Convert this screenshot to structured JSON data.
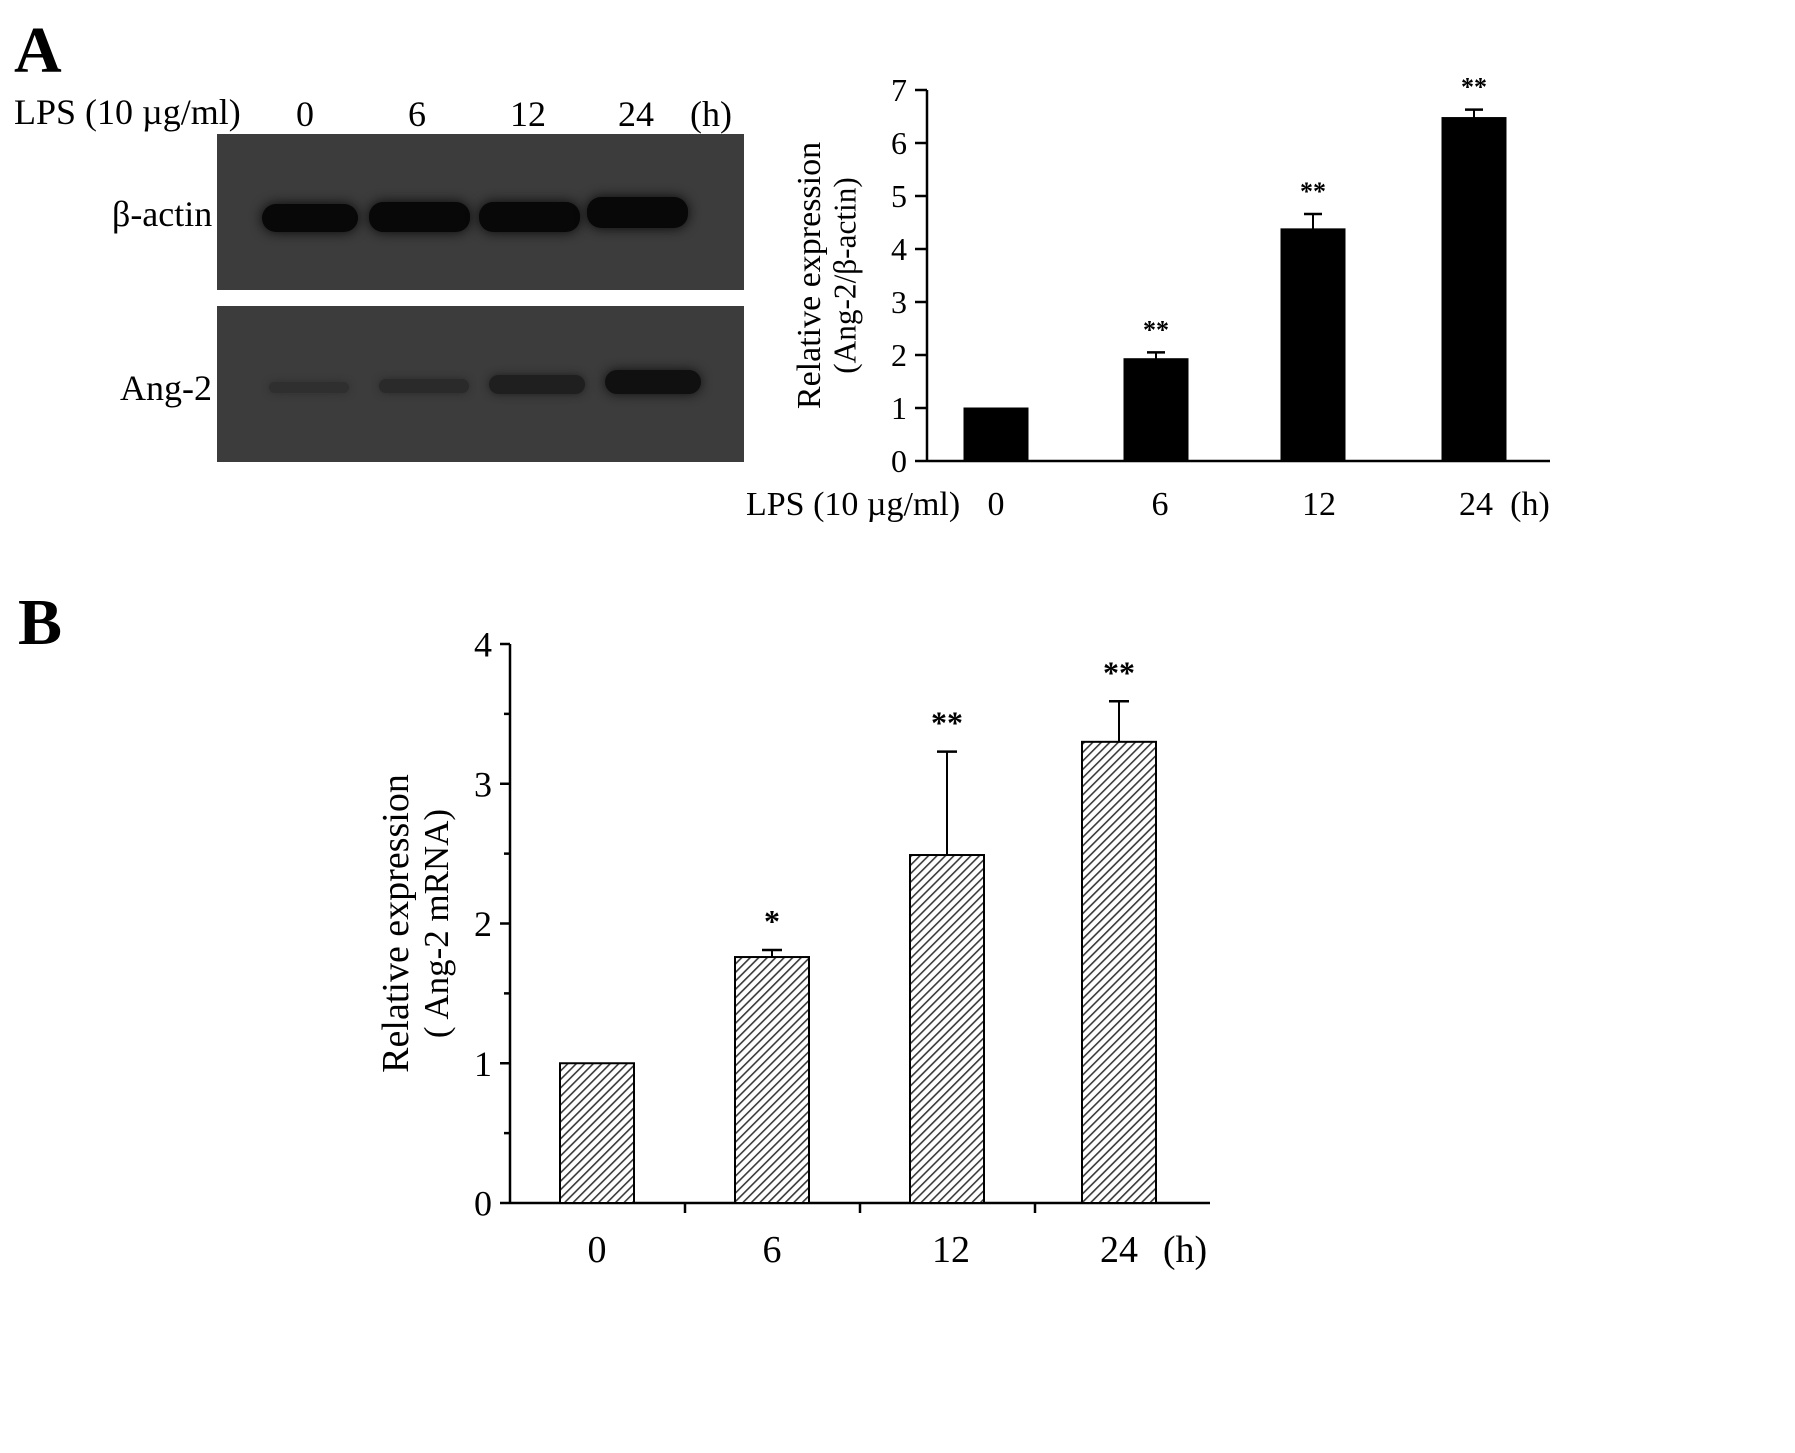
{
  "panel_a": {
    "letter": "A",
    "treatment_label": "LPS (10 µg/ml)",
    "time_labels": [
      "0",
      "6",
      "12",
      "24"
    ],
    "time_unit": "(h)",
    "blot": {
      "rows": [
        {
          "label": "β-actin",
          "band_intensity": [
            1.0,
            1.0,
            1.0,
            1.0
          ]
        },
        {
          "label": "Ang-2",
          "band_intensity": [
            0.25,
            0.35,
            0.55,
            0.85
          ]
        }
      ]
    }
  },
  "panel_b": {
    "letter": "B"
  },
  "chart_data": [
    {
      "type": "bar",
      "panel": "A",
      "categories": [
        "0",
        "6",
        "12",
        "24"
      ],
      "values": [
        1.0,
        1.93,
        4.38,
        6.48
      ],
      "errors": [
        0.0,
        0.12,
        0.28,
        0.15
      ],
      "significance": [
        "",
        "**",
        "**",
        "**"
      ],
      "ylabel_line1": "Relative expression",
      "ylabel_line2": "(Ang-2/β-actin)",
      "xlabel": "LPS (10 µg/ml)",
      "x_unit": "(h)",
      "ylim": [
        0,
        7
      ],
      "yticks": [
        "0",
        "1",
        "2",
        "3",
        "4",
        "5",
        "6",
        "7"
      ],
      "bar_fill": "solid",
      "bar_color": "#000000"
    },
    {
      "type": "bar",
      "panel": "B",
      "categories": [
        "0",
        "6",
        "12",
        "24"
      ],
      "values": [
        1.0,
        1.76,
        2.49,
        3.3
      ],
      "errors": [
        0.0,
        0.05,
        0.74,
        0.29
      ],
      "significance": [
        "",
        "*",
        "**",
        "**"
      ],
      "ylabel_line1": "Relative expression",
      "ylabel_line2": "( Ang-2 mRNA)",
      "x_unit": "(h)",
      "ylim": [
        0,
        4
      ],
      "yticks": [
        "0",
        "1",
        "2",
        "3",
        "4"
      ],
      "bar_fill": "hatched",
      "bar_color": "#3a3a3a"
    }
  ]
}
